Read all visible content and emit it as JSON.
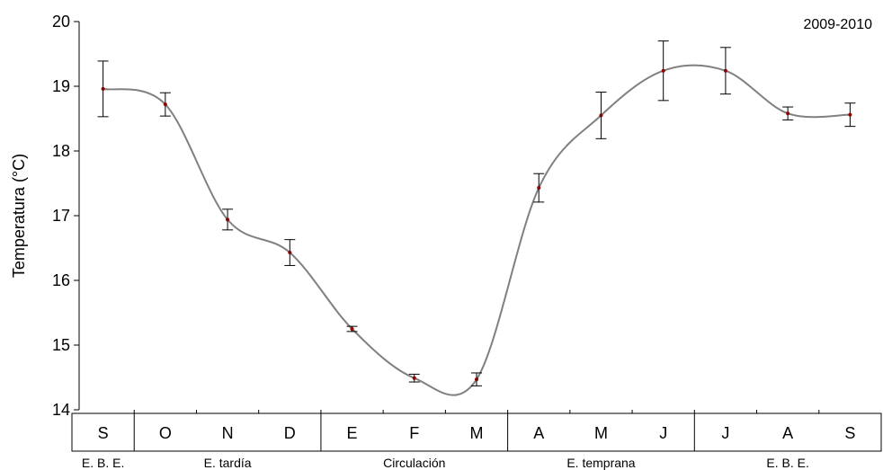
{
  "chart_data": {
    "type": "line",
    "title": "",
    "annotation": "2009-2010",
    "ylabel": "Temperatura (°C)",
    "xlabel": "",
    "ylim": [
      14,
      20
    ],
    "yticks": [
      14,
      15,
      16,
      17,
      18,
      19,
      20
    ],
    "grid": false,
    "smooth": true,
    "colors": {
      "line": "#808080",
      "marker": "#8b0000",
      "error_bar": "#000000",
      "axis": "#000000"
    },
    "categories": [
      "S",
      "O",
      "N",
      "D",
      "E",
      "F",
      "M",
      "A",
      "M",
      "J",
      "J",
      "A",
      "S"
    ],
    "series": [
      {
        "values": [
          18.96,
          18.72,
          16.94,
          16.43,
          15.25,
          14.49,
          14.47,
          17.43,
          18.55,
          19.24,
          19.24,
          18.58,
          18.56
        ],
        "error": [
          0.43,
          0.18,
          0.16,
          0.2,
          0.04,
          0.06,
          0.1,
          0.22,
          0.36,
          0.46,
          0.36,
          0.1,
          0.18
        ]
      }
    ],
    "periods": [
      {
        "label": "E. B. E.",
        "start": 0,
        "end": 0
      },
      {
        "label": "E. tardía",
        "start": 1,
        "end": 3
      },
      {
        "label": "Circulación",
        "start": 4,
        "end": 6
      },
      {
        "label": "E. temprana",
        "start": 7,
        "end": 9
      },
      {
        "label": "E. B. E.",
        "start": 10,
        "end": 12
      }
    ]
  }
}
